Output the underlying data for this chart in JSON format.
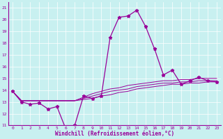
{
  "xlabel": "Windchill (Refroidissement éolien,°C)",
  "background_color": "#c8f0f0",
  "line_color": "#990099",
  "xlim": [
    -0.5,
    23.5
  ],
  "ylim": [
    11,
    21.5
  ],
  "xticks": [
    0,
    1,
    2,
    3,
    4,
    5,
    6,
    7,
    8,
    9,
    10,
    11,
    12,
    13,
    14,
    15,
    16,
    17,
    18,
    19,
    20,
    21,
    22,
    23
  ],
  "yticks": [
    11,
    12,
    13,
    14,
    15,
    16,
    17,
    18,
    19,
    20,
    21
  ],
  "grid_color": "#ffffff",
  "series_main": [
    13.9,
    13.0,
    12.8,
    12.9,
    12.4,
    12.6,
    10.7,
    11.0,
    13.5,
    13.3,
    13.5,
    18.5,
    20.2,
    20.3,
    20.8,
    19.4,
    17.5,
    15.3,
    15.7,
    14.5,
    14.8,
    15.1,
    14.8,
    14.7
  ],
  "series_smooth": [
    [
      13.9,
      13.1,
      13.1,
      13.1,
      13.1,
      13.1,
      13.1,
      13.1,
      13.2,
      13.3,
      13.5,
      13.6,
      13.8,
      13.9,
      14.1,
      14.2,
      14.3,
      14.4,
      14.5,
      14.5,
      14.6,
      14.6,
      14.7,
      14.7
    ],
    [
      13.9,
      13.1,
      13.1,
      13.1,
      13.1,
      13.1,
      13.1,
      13.1,
      13.3,
      13.5,
      13.7,
      13.9,
      14.0,
      14.1,
      14.3,
      14.4,
      14.5,
      14.6,
      14.6,
      14.7,
      14.7,
      14.8,
      14.8,
      14.8
    ],
    [
      13.9,
      13.1,
      13.1,
      13.1,
      13.1,
      13.1,
      13.1,
      13.1,
      13.4,
      13.7,
      13.9,
      14.1,
      14.2,
      14.4,
      14.5,
      14.6,
      14.7,
      14.8,
      14.8,
      14.9,
      14.9,
      15.0,
      15.0,
      15.0
    ]
  ],
  "lw_main": 0.9,
  "lw_smooth": 0.7,
  "markersize": 3.5
}
